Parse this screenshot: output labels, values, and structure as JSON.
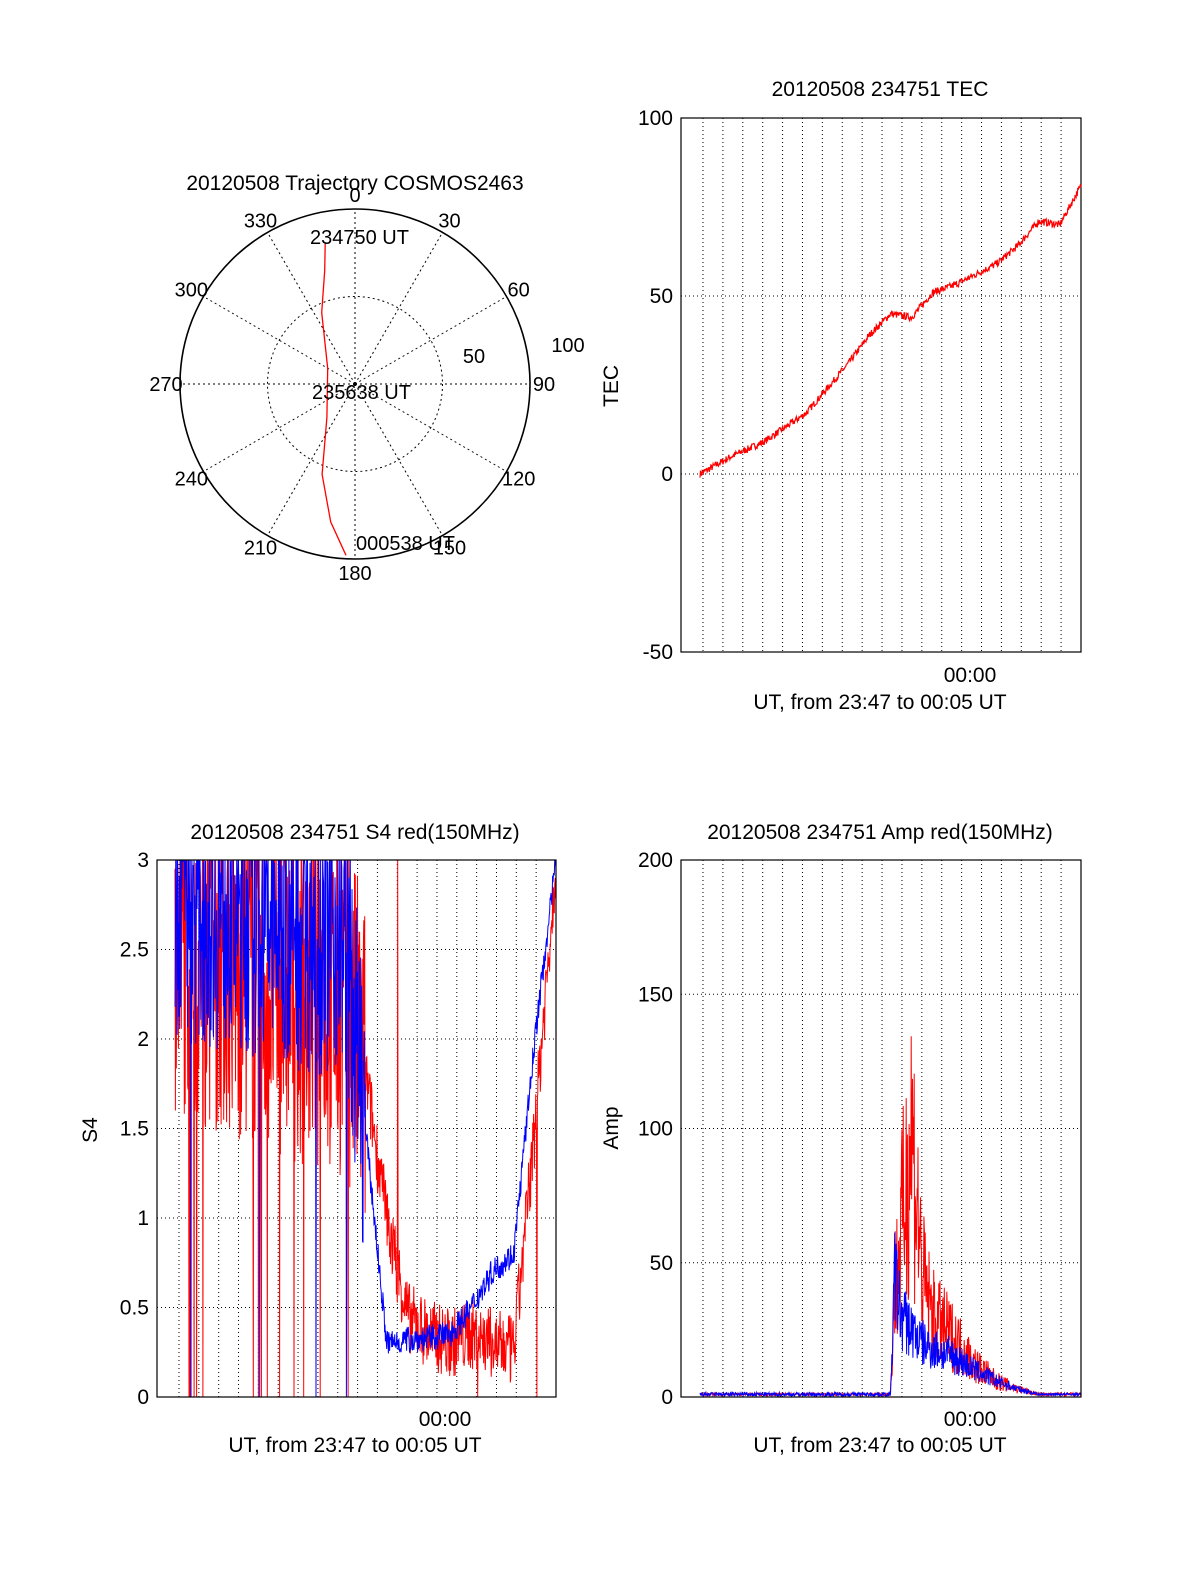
{
  "colors": {
    "series_red": "#ff0000",
    "series_blue": "#0000ff",
    "axis": "#000000",
    "grid": "#000000"
  },
  "chart_data": [
    {
      "id": "trajectory",
      "type": "polar",
      "title": "20120508 Trajectory COSMOS2463",
      "angle_labels": [
        "0",
        "30",
        "60",
        "90",
        "120",
        "150",
        "180",
        "210",
        "240",
        "270",
        "300",
        "330"
      ],
      "radial_labels": [
        "50",
        "100"
      ],
      "annotations": [
        "234750 UT",
        "235638 UT",
        "000538 UT"
      ],
      "series": [
        {
          "color": "red",
          "points": [
            {
              "az": 348,
              "el": 18
            },
            {
              "az": 345,
              "el": 33
            },
            {
              "az": 335,
              "el": 55
            },
            {
              "az": 300,
              "el": 82
            },
            {
              "az": 220,
              "el": 75
            },
            {
              "az": 200,
              "el": 45
            },
            {
              "az": 190,
              "el": 20
            },
            {
              "az": 183,
              "el": 2
            }
          ]
        }
      ]
    },
    {
      "id": "tec",
      "type": "line",
      "title": "20120508 234751 TEC",
      "ylabel": "TEC",
      "xlabel": "UT, from 23:47 to 00:05 UT",
      "xtick_label": "00:00",
      "ylim": [
        -50,
        100
      ],
      "yticks": [
        "-50",
        "0",
        "50",
        "100"
      ],
      "grid": true,
      "series": [
        {
          "color": "red",
          "x_min": [
            0,
            1.5,
            3,
            5,
            6,
            7,
            8,
            9,
            10,
            11,
            12,
            13,
            14,
            15,
            16,
            17,
            18
          ],
          "y": [
            0,
            5,
            9,
            17,
            24,
            31,
            39,
            45,
            44,
            51,
            53,
            56,
            59,
            64,
            71,
            70,
            81
          ]
        }
      ]
    },
    {
      "id": "s4",
      "type": "line",
      "title": "20120508 234751 S4 red(150MHz)",
      "ylabel": "S4",
      "xlabel": "UT, from 23:47 to 00:05 UT",
      "xtick_label": "00:00",
      "ylim": [
        0,
        3
      ],
      "yticks": [
        "0",
        "0.5",
        "1",
        "1.5",
        "2",
        "2.5",
        "3"
      ],
      "grid": true,
      "series": [
        {
          "color": "red",
          "x_min": [
            0,
            3,
            6,
            8,
            9,
            10,
            11,
            12,
            13,
            14,
            15,
            16,
            17,
            18
          ],
          "y": [
            2.6,
            2.4,
            2.3,
            2.2,
            1.8,
            1.0,
            0.45,
            0.35,
            0.3,
            0.35,
            0.3,
            0.25,
            1.5,
            3.0
          ]
        },
        {
          "color": "blue",
          "x_min": [
            0,
            3,
            6,
            8,
            9,
            10,
            11,
            12,
            13,
            14,
            15,
            16,
            17,
            18
          ],
          "y": [
            2.8,
            2.7,
            2.6,
            2.6,
            1.5,
            0.3,
            0.32,
            0.33,
            0.35,
            0.5,
            0.7,
            0.8,
            2.0,
            3.0
          ]
        }
      ]
    },
    {
      "id": "amp",
      "type": "line",
      "title": "20120508 234751 Amp red(150MHz)",
      "ylabel": "Amp",
      "xlabel": "UT, from 23:47 to 00:05 UT",
      "xtick_label": "00:00",
      "ylim": [
        0,
        200
      ],
      "yticks": [
        "0",
        "50",
        "100",
        "150",
        "200"
      ],
      "grid": true,
      "series": [
        {
          "color": "red",
          "x_min": [
            0,
            5,
            9,
            9.2,
            9.5,
            10,
            10.5,
            11,
            12,
            13,
            14,
            15,
            16,
            17,
            18
          ],
          "y": [
            1,
            1,
            1,
            40,
            60,
            100,
            45,
            30,
            22,
            12,
            6,
            3,
            1,
            1,
            1
          ]
        },
        {
          "color": "blue",
          "x_min": [
            0,
            5,
            9,
            9.2,
            9.5,
            10,
            10.5,
            11,
            12,
            13,
            14,
            15,
            16,
            17,
            18
          ],
          "y": [
            1,
            1,
            1,
            45,
            30,
            25,
            20,
            18,
            15,
            10,
            6,
            3,
            1,
            1,
            1
          ]
        }
      ]
    }
  ]
}
